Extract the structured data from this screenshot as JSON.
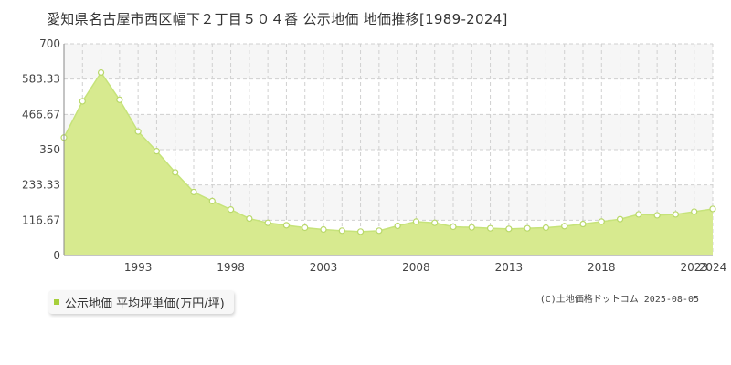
{
  "title": "愛知県名古屋市西区幅下２丁目５０４番 公示地価 地価推移[1989-2024]",
  "legend": {
    "label": "公示地価 平均坪単価(万円/坪)"
  },
  "credit": "(C)土地価格ドットコム 2025-08-05",
  "colors": {
    "fill": "#d7ea8f",
    "line": "#c6e37a",
    "marker_fill": "#ffffff",
    "marker_stroke": "#b9d86a",
    "legend_marker": "#a6cf3a",
    "grid": "#d0d0d0",
    "band": "#f6f6f6",
    "axis": "#888888"
  },
  "chart_data": {
    "type": "area",
    "xlim": [
      1989,
      2024
    ],
    "ylim": [
      0,
      700
    ],
    "yticks": [
      0,
      116.67,
      233.33,
      350,
      466.67,
      583.33,
      700
    ],
    "ytick_labels": [
      "0",
      "116.67",
      "233.33",
      "350",
      "466.67",
      "583.33",
      "700"
    ],
    "xticks": [
      1993,
      1998,
      2003,
      2008,
      2013,
      2018,
      2023,
      2024
    ],
    "xtick_labels": [
      "1993",
      "1998",
      "2003",
      "2008",
      "2013",
      "2018",
      "2023",
      "2024"
    ],
    "grid": true,
    "legend_position": "bottom-left",
    "series": [
      {
        "name": "公示地価 平均坪単価(万円/坪)",
        "x": [
          1989,
          1990,
          1991,
          1992,
          1993,
          1994,
          1995,
          1996,
          1997,
          1998,
          1999,
          2000,
          2001,
          2002,
          2003,
          2004,
          2005,
          2006,
          2007,
          2008,
          2009,
          2010,
          2011,
          2012,
          2013,
          2014,
          2015,
          2016,
          2017,
          2018,
          2019,
          2020,
          2021,
          2022,
          2023,
          2024
        ],
        "values": [
          390,
          510,
          605,
          515,
          410,
          345,
          275,
          210,
          180,
          152,
          122,
          108,
          100,
          92,
          86,
          82,
          79,
          82,
          98,
          112,
          108,
          95,
          93,
          90,
          88,
          90,
          92,
          97,
          104,
          112,
          120,
          136,
          133,
          136,
          145,
          154
        ]
      }
    ]
  }
}
